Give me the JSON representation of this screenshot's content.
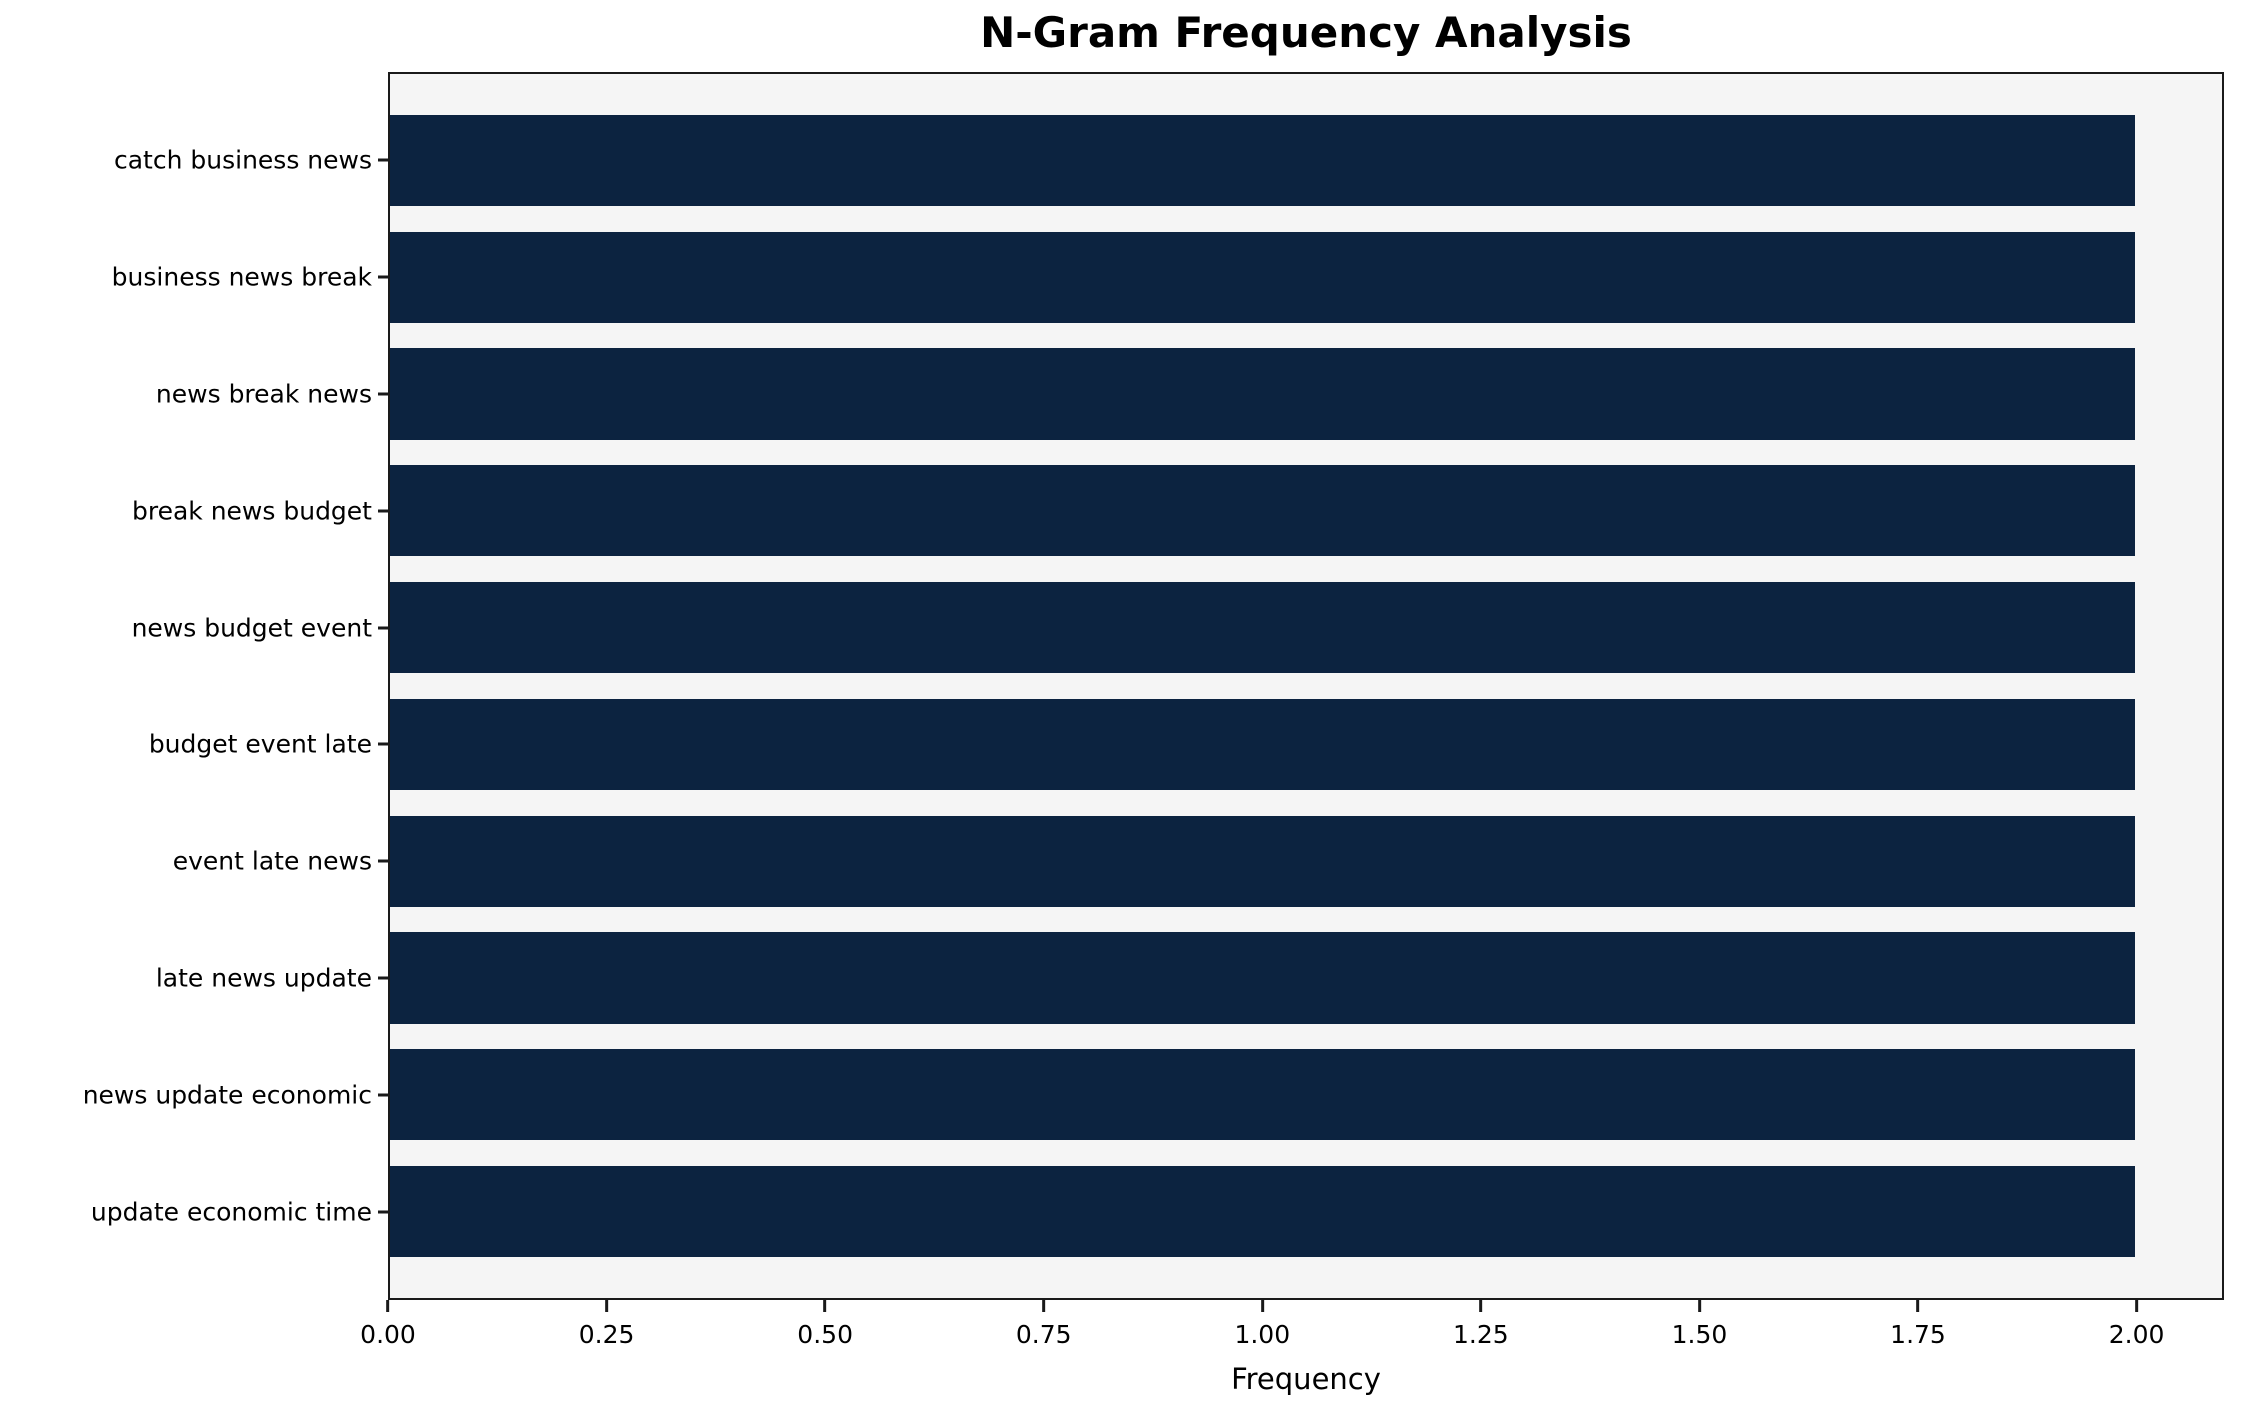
{
  "chart_data": {
    "type": "bar",
    "orientation": "horizontal",
    "title": "N-Gram Frequency Analysis",
    "xlabel": "Frequency",
    "ylabel": "",
    "categories": [
      "catch business news",
      "business news break",
      "news break news",
      "break news budget",
      "news budget event",
      "budget event late",
      "event late news",
      "late news update",
      "news update economic",
      "update economic time"
    ],
    "values": [
      2,
      2,
      2,
      2,
      2,
      2,
      2,
      2,
      2,
      2
    ],
    "xlim": [
      0,
      2.1
    ],
    "xticks": [
      0,
      0.25,
      0.5,
      0.75,
      1,
      1.25,
      1.5,
      1.75,
      2
    ],
    "xtick_labels": [
      "0.00",
      "0.25",
      "0.50",
      "0.75",
      "1.00",
      "1.25",
      "1.50",
      "1.75",
      "2.00"
    ],
    "grid": false,
    "legend_position": "none",
    "bar_color": "#0c2340",
    "plot_background": "#f5f5f5",
    "figure_background": "#ffffff"
  }
}
